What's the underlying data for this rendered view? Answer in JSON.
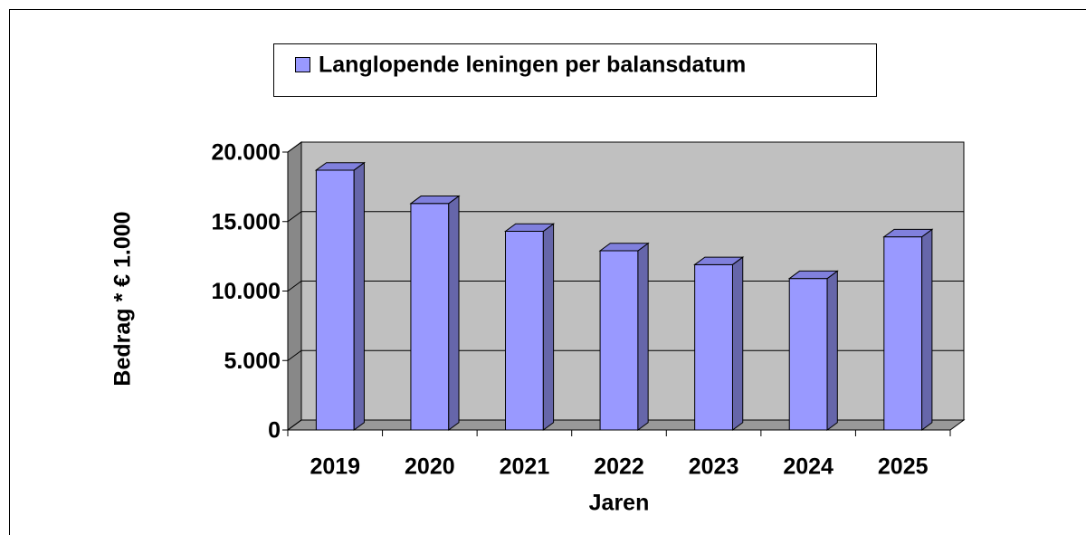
{
  "chart_data": {
    "type": "bar3d",
    "legend_label": "Langlopende leningen per balansdatum",
    "xlabel": "Jaren",
    "ylabel": "Bedrag * € 1.000",
    "categories": [
      "2019",
      "2020",
      "2021",
      "2022",
      "2023",
      "2024",
      "2025"
    ],
    "series": [
      {
        "name": "Langlopende leningen per balansdatum",
        "color": "#9999ff",
        "values": [
          18700,
          16300,
          14300,
          12900,
          11900,
          10900,
          13900
        ]
      }
    ],
    "ylim": [
      0,
      20000
    ],
    "yticks": [
      0,
      {
        "value": 5000,
        "label": "5.000"
      },
      {
        "value": 10000,
        "label": "10.000"
      },
      {
        "value": 15000,
        "label": "15.000"
      },
      {
        "value": 20000,
        "label": "20.000"
      }
    ],
    "grid": true,
    "legend": "top"
  }
}
